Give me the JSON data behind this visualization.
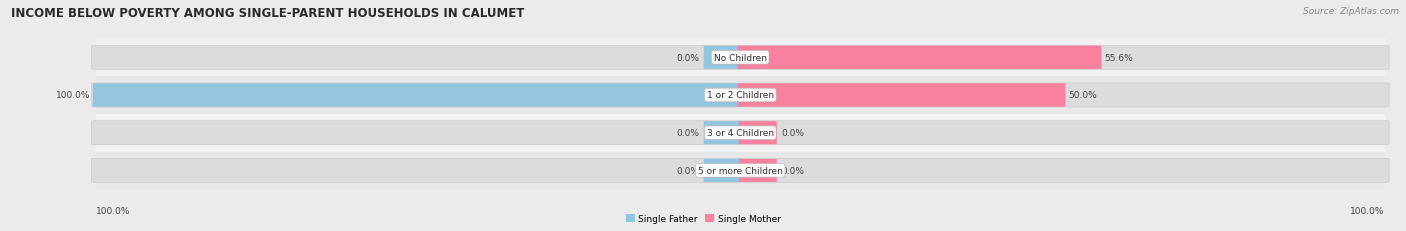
{
  "title": "INCOME BELOW POVERTY AMONG SINGLE-PARENT HOUSEHOLDS IN CALUMET",
  "source": "Source: ZipAtlas.com",
  "categories": [
    "No Children",
    "1 or 2 Children",
    "3 or 4 Children",
    "5 or more Children"
  ],
  "single_father": [
    0.0,
    100.0,
    0.0,
    0.0
  ],
  "single_mother": [
    55.6,
    50.0,
    0.0,
    0.0
  ],
  "father_color": "#92C5DE",
  "mother_color": "#F7819F",
  "bg_color": "#EBEBEB",
  "bar_bg_color": "#DCDCDC",
  "row_bg_odd": "#E8E8E8",
  "row_bg_even": "#F2F2F2",
  "max_val": 100.0,
  "title_fontsize": 8.5,
  "source_fontsize": 6.5,
  "label_fontsize": 6.5,
  "cat_fontsize": 6.5,
  "axis_label_bottom_left": "100.0%",
  "axis_label_bottom_right": "100.0%",
  "stub_size": 0.025
}
